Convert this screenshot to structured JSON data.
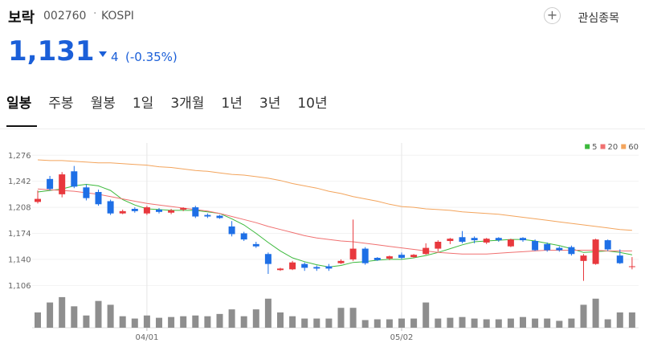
{
  "header": {
    "name": "보락",
    "code": "002760",
    "market": "KOSPI",
    "watch": "관심종목",
    "price": "1,131",
    "change": "4",
    "change_pct": "(-0.35%)"
  },
  "tabs": [
    "일봉",
    "주봉",
    "월봉",
    "1일",
    "3개월",
    "1년",
    "3년",
    "10년"
  ],
  "chart_data": {
    "type": "candlestick",
    "categories": [
      null,
      null,
      null,
      null,
      null,
      null,
      null,
      null,
      null,
      "04/01",
      null,
      null,
      null,
      null,
      null,
      null,
      null,
      null,
      null,
      null,
      null,
      null,
      null,
      null,
      null,
      null,
      null,
      null,
      null,
      null,
      "05/02",
      null,
      null,
      null,
      null,
      null,
      null,
      null,
      null,
      null,
      null,
      null,
      null,
      null,
      null,
      null,
      null,
      null,
      null,
      null
    ],
    "open": [
      1215,
      1245,
      1225,
      1255,
      1234,
      1228,
      1216,
      1200,
      1206,
      1200,
      1205,
      1201,
      1205,
      1208,
      1198,
      1197,
      1183,
      1174,
      1160,
      1147,
      1126,
      1127,
      1134,
      1130,
      1131,
      1135,
      1140,
      1154,
      1142,
      1141,
      1146,
      1143,
      1147,
      1154,
      1164,
      1169,
      1168,
      1162,
      1168,
      1157,
      1168,
      1164,
      1160,
      1155,
      1156,
      1138,
      1134,
      1165,
      1145,
      1130
    ],
    "high": [
      1230,
      1249,
      1254,
      1262,
      1238,
      1231,
      1218,
      1205,
      1208,
      1210,
      1207,
      1206,
      1208,
      1210,
      1200,
      1198,
      1190,
      1176,
      1163,
      1149,
      1129,
      1138,
      1136,
      1132,
      1134,
      1140,
      1192,
      1156,
      1143,
      1145,
      1149,
      1147,
      1161,
      1165,
      1168,
      1177,
      1170,
      1168,
      1169,
      1167,
      1169,
      1166,
      1162,
      1157,
      1158,
      1147,
      1167,
      1166,
      1153,
      1143
    ],
    "low": [
      1213,
      1230,
      1221,
      1233,
      1217,
      1210,
      1198,
      1199,
      1201,
      1198,
      1200,
      1199,
      1203,
      1194,
      1194,
      1193,
      1170,
      1164,
      1155,
      1121,
      1125,
      1126,
      1125,
      1125,
      1125,
      1134,
      1138,
      1133,
      1138,
      1139,
      1140,
      1142,
      1146,
      1150,
      1160,
      1161,
      1161,
      1160,
      1163,
      1156,
      1163,
      1151,
      1150,
      1150,
      1145,
      1112,
      1133,
      1151,
      1134,
      1127
    ],
    "close": [
      1219,
      1232,
      1251,
      1235,
      1220,
      1212,
      1200,
      1203,
      1203,
      1208,
      1202,
      1204,
      1207,
      1196,
      1196,
      1194,
      1173,
      1166,
      1157,
      1134,
      1128,
      1136,
      1129,
      1128,
      1128,
      1138,
      1154,
      1135,
      1139,
      1144,
      1142,
      1146,
      1155,
      1163,
      1167,
      1163,
      1165,
      1167,
      1165,
      1166,
      1165,
      1152,
      1152,
      1152,
      1147,
      1145,
      1166,
      1153,
      1135,
      1131
    ],
    "volume": [
      20,
      33,
      40,
      28,
      16,
      35,
      30,
      15,
      12,
      16,
      13,
      14,
      15,
      16,
      15,
      18,
      24,
      15,
      24,
      38,
      20,
      15,
      12,
      12,
      12,
      26,
      26,
      10,
      11,
      11,
      12,
      12,
      33,
      12,
      13,
      14,
      12,
      11,
      11,
      12,
      14,
      12,
      12,
      9,
      12,
      30,
      38,
      11,
      20,
      20
    ],
    "up_color": "#e8383d",
    "down_color": "#1e6fe6",
    "volume_color": "#8e8e8e",
    "series": [
      {
        "name": "5",
        "color": "#3cb93c",
        "values": [
          1228,
          1230,
          1232,
          1236,
          1238,
          1236,
          1230,
          1218,
          1211,
          1206,
          1205,
          1204,
          1204,
          1204,
          1202,
          1200,
          1193,
          1185,
          1174,
          1162,
          1151,
          1142,
          1137,
          1133,
          1130,
          1132,
          1136,
          1137,
          1139,
          1140,
          1140,
          1142,
          1145,
          1149,
          1154,
          1159,
          1163,
          1164,
          1165,
          1166,
          1166,
          1164,
          1161,
          1158,
          1154,
          1149,
          1150,
          1151,
          1149,
          1146
        ]
      },
      {
        "name": "20",
        "color": "#f07070",
        "values": [
          1232,
          1231,
          1230,
          1229,
          1227,
          1225,
          1222,
          1219,
          1216,
          1213,
          1211,
          1209,
          1207,
          1205,
          1203,
          1200,
          1196,
          1192,
          1188,
          1183,
          1179,
          1175,
          1171,
          1168,
          1166,
          1164,
          1163,
          1161,
          1159,
          1157,
          1155,
          1153,
          1151,
          1149,
          1148,
          1147,
          1147,
          1147,
          1148,
          1149,
          1150,
          1151,
          1152,
          1152,
          1152,
          1152,
          1152,
          1151,
          1151,
          1151
        ]
      },
      {
        "name": "60",
        "color": "#f3a45c",
        "values": [
          1270,
          1269,
          1269,
          1268,
          1267,
          1266,
          1266,
          1265,
          1264,
          1263,
          1261,
          1260,
          1258,
          1256,
          1255,
          1253,
          1251,
          1250,
          1248,
          1246,
          1243,
          1239,
          1236,
          1233,
          1229,
          1226,
          1222,
          1219,
          1216,
          1212,
          1209,
          1208,
          1206,
          1205,
          1204,
          1202,
          1201,
          1200,
          1199,
          1197,
          1195,
          1193,
          1191,
          1189,
          1187,
          1185,
          1183,
          1181,
          1179,
          1178
        ]
      }
    ],
    "ylim": [
      1099,
      1292
    ],
    "yticks": [
      {
        "value": 1276,
        "label": "1,276"
      },
      {
        "value": 1242,
        "label": "1,242"
      },
      {
        "value": 1208,
        "label": "1,208"
      },
      {
        "value": 1174,
        "label": "1,174"
      },
      {
        "value": 1140,
        "label": "1,140"
      },
      {
        "value": 1106,
        "label": "1,106"
      }
    ],
    "vlim": [
      0,
      42
    ],
    "grid": true,
    "legend": "top-right"
  }
}
